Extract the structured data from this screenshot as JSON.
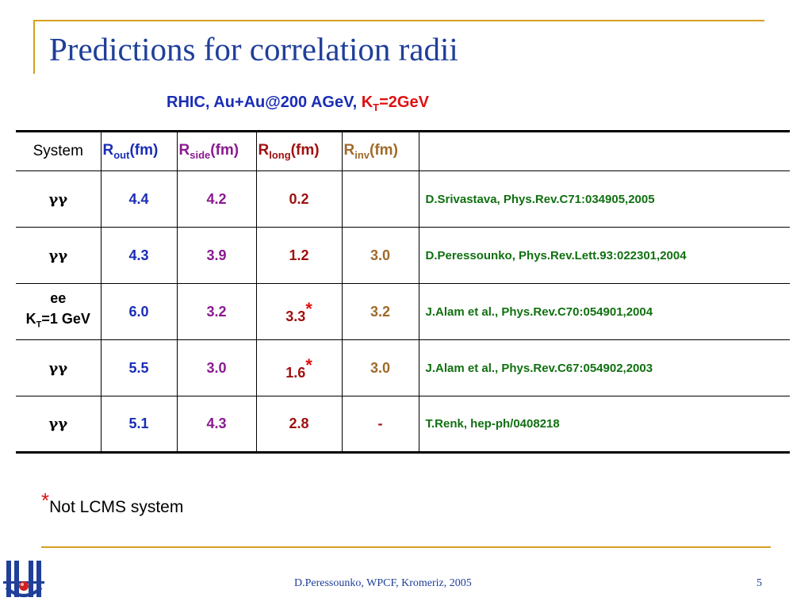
{
  "slide": {
    "title": "Predictions for correlation radii",
    "subtitle_prefix": "RHIC, Au+Au@200 AGeV,",
    "subtitle_k": "K",
    "subtitle_k_sub": "T",
    "subtitle_k_value": "=2GeV"
  },
  "table": {
    "headers": {
      "system": "System",
      "rout": {
        "main": "R",
        "sub": "out",
        "unit": "(fm)"
      },
      "rside": {
        "main": "R",
        "sub": "side",
        "unit": "(fm)"
      },
      "rlong": {
        "main": "R",
        "sub": "long",
        "unit": "(fm)"
      },
      "rinv": {
        "main": "R",
        "sub": "inv",
        "unit": "(fm)"
      }
    },
    "rows": [
      {
        "system": "γγ",
        "rout": "4.4",
        "rside": "4.2",
        "rlong": "0.2",
        "rinv": "",
        "ref": "D.Srivastava, Phys.Rev.C71:034905,2005"
      },
      {
        "system": "γγ",
        "rout": "4.3",
        "rside": "3.9",
        "rlong": "1.2",
        "rinv": "3.0",
        "ref": "D.Peressounko, Phys.Rev.Lett.93:022301,2004"
      },
      {
        "system_line1": "ee",
        "system_line2_main": "K",
        "system_line2_sub": "T",
        "system_line2_rest": "=1 GeV",
        "rout": "6.0",
        "rside": "3.2",
        "rlong": "3.3",
        "rlong_mark": "*",
        "rinv": "3.2",
        "ref": "J.Alam et al., Phys.Rev.C70:054901,2004"
      },
      {
        "system": "γγ",
        "rout": "5.5",
        "rside": "3.0",
        "rlong": "1.6",
        "rlong_mark": "*",
        "rinv": "3.0",
        "ref": "J.Alam et al., Phys.Rev.C67:054902,2003"
      },
      {
        "system": "γγ",
        "rout": "5.1",
        "rside": "4.3",
        "rlong": "2.8",
        "rinv": "-",
        "ref": "T.Renk, hep-ph/0408218"
      }
    ]
  },
  "footnote": {
    "mark": "*",
    "text": "Not LCMS system"
  },
  "footer": {
    "text": "D.Peressounko, WPCF, Kromeriz, 2005",
    "page": "5"
  },
  "colors": {
    "title": "#1f3f99",
    "accent_line": "#d4a01e",
    "rout": "#1a2db5",
    "rside": "#8a1a90",
    "rlong": "#a01010",
    "rinv": "#a06a2a",
    "reference": "#107010",
    "highlight": "#e01010"
  }
}
